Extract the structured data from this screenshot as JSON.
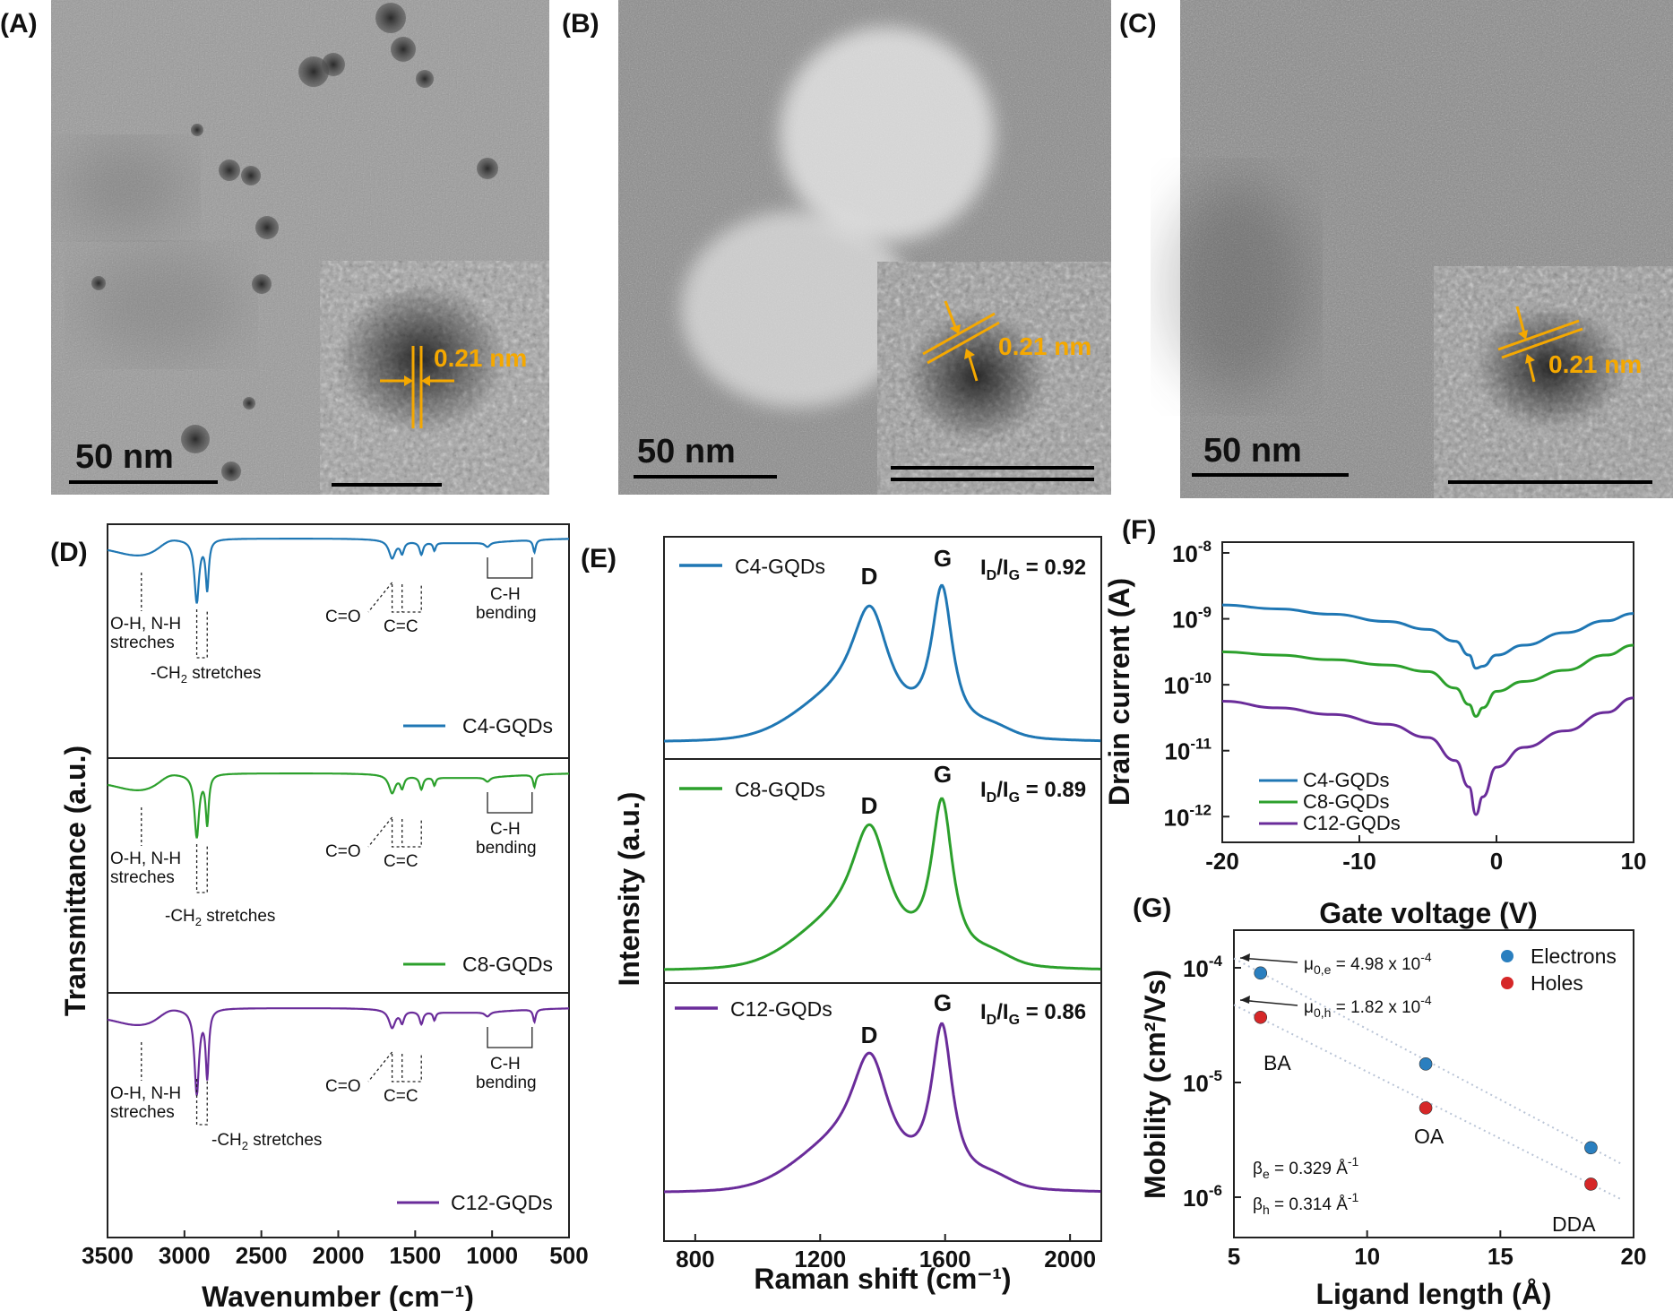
{
  "colors": {
    "c4": "#1f77b4",
    "c8": "#2ca02c",
    "c12": "#6a2c9a",
    "orange": "#F5A800",
    "electrons": "#2a7fbf",
    "holes": "#d62728"
  },
  "tem": {
    "panels": [
      {
        "label": "(A)",
        "scale_label": "50 nm",
        "spacing_label": "0.21 nm"
      },
      {
        "label": "(B)",
        "scale_label": "50 nm",
        "spacing_label": "0.21 nm"
      },
      {
        "label": "(C)",
        "scale_label": "50 nm",
        "spacing_label": "0.21 nm"
      }
    ]
  },
  "ftir": {
    "label": "(D)",
    "xlabel": "Wavenumber (cm⁻¹)",
    "ylabel": "Transmittance (a.u.)",
    "xticks": [
      "3500",
      "3000",
      "2500",
      "2000",
      "1500",
      "1000",
      "500"
    ],
    "annotations": {
      "oh_line1": "O-H, N-H",
      "oh_line2": "streches",
      "ch2": "-CH",
      "ch2_sub": "2",
      "ch2_tail": " stretches",
      "co": "C=O",
      "cc": "C=C",
      "ch_line1": "C-H",
      "ch_line2": "bending"
    },
    "legends": [
      "C4-GQDs",
      "C8-GQDs",
      "C12-GQDs"
    ]
  },
  "raman": {
    "label": "(E)",
    "xlabel": "Raman shift (cm⁻¹)",
    "ylabel": "Intensity (a.u.)",
    "xticks": [
      "800",
      "1200",
      "1600",
      "2000"
    ],
    "peaks": {
      "d": "D",
      "g": "G"
    },
    "legends": [
      "C4-GQDs",
      "C8-GQDs",
      "C12-GQDs"
    ],
    "ratio_prefix": "I",
    "ratio_d": "D",
    "ratio_slash": "/I",
    "ratio_g": "G",
    "ratios": [
      " = 0.92",
      " = 0.89",
      " = 0.86"
    ]
  },
  "transfer": {
    "label": "(F)",
    "xlabel": "Gate voltage (V)",
    "ylabel": "Drain current (A)",
    "xticks": [
      "-20",
      "-10",
      "0",
      "10"
    ],
    "yticks": [
      {
        "base": "10",
        "exp": "-8"
      },
      {
        "base": "10",
        "exp": "-9"
      },
      {
        "base": "10",
        "exp": "-10"
      },
      {
        "base": "10",
        "exp": "-11"
      },
      {
        "base": "10",
        "exp": "-12"
      }
    ],
    "legends": [
      "C4-GQDs",
      "C8-GQDs",
      "C12-GQDs"
    ]
  },
  "mobility": {
    "label": "(G)",
    "xlabel": "Ligand length (Å)",
    "ylabel": "Mobility (cm²/Vs)",
    "xticks": [
      "5",
      "10",
      "15",
      "20"
    ],
    "yticks": [
      {
        "base": "10",
        "exp": "-4"
      },
      {
        "base": "10",
        "exp": "-5"
      },
      {
        "base": "10",
        "exp": "-6"
      }
    ],
    "legend": [
      "Electrons",
      "Holes"
    ],
    "mu_e": {
      "sym": "μ",
      "sub": "0,e",
      "val": " = 4.98 x 10",
      "exp": "-4"
    },
    "mu_h": {
      "sym": "μ",
      "sub": "0,h",
      "val": " = 1.82 x 10",
      "exp": "-4"
    },
    "beta_e": {
      "sym": "β",
      "sub": "e",
      "val": " = 0.329 Å",
      "exp": "-1"
    },
    "beta_h": {
      "sym": "β",
      "sub": "h",
      "val": " = 0.314 Å",
      "exp": "-1"
    },
    "ligands": [
      "BA",
      "OA",
      "DDA"
    ]
  },
  "chart_data": [
    {
      "type": "line",
      "title": "(D)",
      "xlabel": "Wavenumber (cm-1)",
      "ylabel": "Transmittance (a.u.)",
      "xlim": [
        3500,
        500
      ],
      "series_names": [
        "C4-GQDs",
        "C8-GQDs",
        "C12-GQDs"
      ],
      "bands_cm1": {
        "OH_NH": 3280,
        "CH2_asym": 2920,
        "CH2_sym": 2850,
        "C_O": 1650,
        "C_C": [
          1580,
          1460
        ],
        "CH_bend": [
          1030,
          740
        ]
      }
    },
    {
      "type": "line",
      "title": "(E)",
      "xlabel": "Raman shift (cm-1)",
      "ylabel": "Intensity (a.u.)",
      "xlim": [
        700,
        2100
      ],
      "series": [
        {
          "name": "C4-GQDs",
          "D_peak": 1360,
          "G_peak": 1590,
          "ID_IG": 0.92
        },
        {
          "name": "C8-GQDs",
          "D_peak": 1360,
          "G_peak": 1590,
          "ID_IG": 0.89
        },
        {
          "name": "C12-GQDs",
          "D_peak": 1360,
          "G_peak": 1590,
          "ID_IG": 0.86
        }
      ]
    },
    {
      "type": "line",
      "title": "(F)",
      "xlabel": "Gate voltage (V)",
      "ylabel": "Drain current (A)",
      "xlim": [
        -20,
        10
      ],
      "ylim_log10": [
        -12.2,
        -8
      ],
      "log_y": true,
      "x": [
        -20,
        -16,
        -12,
        -8,
        -5,
        -3,
        -2,
        -1.5,
        -1,
        0,
        2,
        5,
        8,
        10
      ],
      "series": [
        {
          "name": "C4-GQDs",
          "log10_values": [
            -8.79,
            -8.85,
            -8.93,
            -9.04,
            -9.16,
            -9.34,
            -9.55,
            -9.75,
            -9.72,
            -9.55,
            -9.4,
            -9.21,
            -9.03,
            -8.92
          ]
        },
        {
          "name": "C8-GQDs",
          "log10_values": [
            -9.5,
            -9.55,
            -9.62,
            -9.7,
            -9.8,
            -10.05,
            -10.3,
            -10.48,
            -10.35,
            -10.1,
            -9.95,
            -9.78,
            -9.55,
            -9.4
          ]
        },
        {
          "name": "C12-GQDs",
          "log10_values": [
            -10.25,
            -10.35,
            -10.45,
            -10.6,
            -10.8,
            -11.15,
            -11.55,
            -11.97,
            -11.7,
            -11.25,
            -10.95,
            -10.7,
            -10.42,
            -10.2
          ]
        }
      ]
    },
    {
      "type": "scatter",
      "title": "(G)",
      "xlabel": "Ligand length (Å)",
      "ylabel": "Mobility (cm2/Vs)",
      "xlim": [
        5,
        20
      ],
      "log_y": true,
      "ylim_log10": [
        -6.2,
        -3.6
      ],
      "series": [
        {
          "name": "Electrons",
          "x": [
            6.0,
            12.2,
            18.4
          ],
          "y": [
            9e-05,
            1.45e-05,
            2.7e-06
          ],
          "fit_intercept": 0.000498
        },
        {
          "name": "Holes",
          "x": [
            6.0,
            12.2,
            18.4
          ],
          "y": [
            3.7e-05,
            6e-06,
            1.3e-06
          ],
          "fit_intercept": 0.000182
        }
      ],
      "points": [
        "BA",
        "OA",
        "DDA"
      ]
    }
  ]
}
